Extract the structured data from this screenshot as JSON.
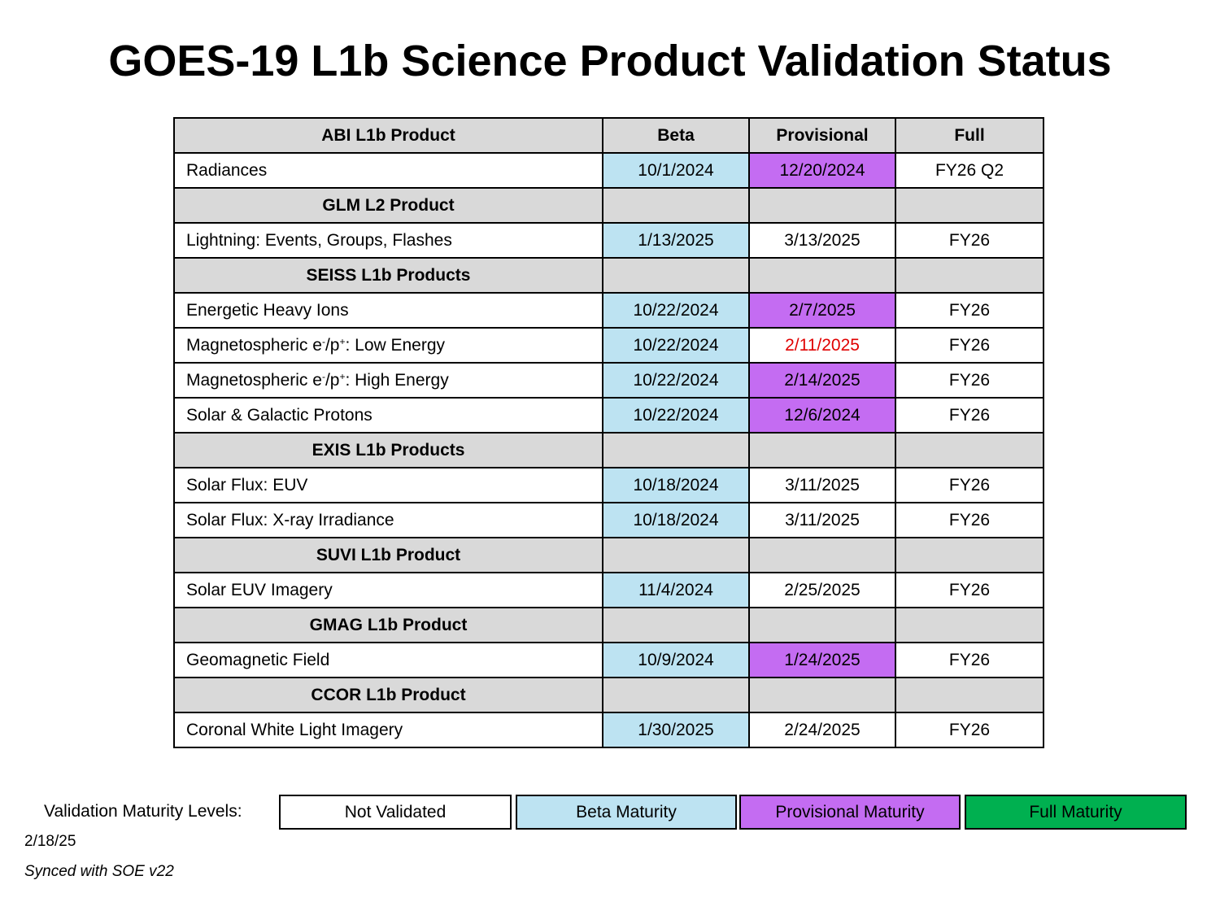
{
  "title": "GOES-19 L1b Science Product Validation Status",
  "colors": {
    "header_gray": "#d9d9d9",
    "beta": "#bde3f2",
    "provisional": "#c46cf2",
    "full": "#00b050",
    "not_validated": "#ffffff",
    "alert_text": "#e00000"
  },
  "table": {
    "header": {
      "product": "ABI L1b Product",
      "beta": "Beta",
      "provisional": "Provisional",
      "full": "Full"
    },
    "rows": [
      {
        "type": "item",
        "name": "Radiances",
        "beta": "10/1/2024",
        "provisional": "12/20/2024",
        "full": "FY26 Q2",
        "beta_status": "beta",
        "provisional_status": "provisional"
      },
      {
        "type": "section",
        "name": "GLM L2 Product"
      },
      {
        "type": "item",
        "name": "Lightning: Events, Groups, Flashes",
        "beta": "1/13/2025",
        "provisional": "3/13/2025",
        "full": "FY26",
        "beta_status": "beta"
      },
      {
        "type": "section",
        "name": "SEISS L1b Products"
      },
      {
        "type": "item",
        "name": "Energetic Heavy Ions",
        "beta": "10/22/2024",
        "provisional": "2/7/2025",
        "full": "FY26",
        "beta_status": "beta",
        "provisional_status": "provisional"
      },
      {
        "type": "item",
        "name_pre": "Magnetospheric e",
        "name_sup1": "-",
        "name_mid": "/p",
        "name_sup2": "+",
        "name_post": ": Low Energy",
        "beta": "10/22/2024",
        "provisional": "2/11/2025",
        "full": "FY26",
        "beta_status": "beta",
        "provisional_text": "red"
      },
      {
        "type": "item",
        "name_pre": "Magnetospheric e",
        "name_sup1": "-",
        "name_mid": "/p",
        "name_sup2": "+",
        "name_post": ": High Energy",
        "beta": "10/22/2024",
        "provisional": "2/14/2025",
        "full": "FY26",
        "beta_status": "beta",
        "provisional_status": "provisional"
      },
      {
        "type": "item",
        "name": "Solar & Galactic Protons",
        "beta": "10/22/2024",
        "provisional": "12/6/2024",
        "full": "FY26",
        "beta_status": "beta",
        "provisional_status": "provisional"
      },
      {
        "type": "section",
        "name": "EXIS L1b Products"
      },
      {
        "type": "item",
        "name": "Solar Flux: EUV",
        "beta": "10/18/2024",
        "provisional": "3/11/2025",
        "full": "FY26",
        "beta_status": "beta"
      },
      {
        "type": "item",
        "name": "Solar Flux: X-ray Irradiance",
        "beta": "10/18/2024",
        "provisional": "3/11/2025",
        "full": "FY26",
        "beta_status": "beta"
      },
      {
        "type": "section",
        "name": "SUVI L1b Product"
      },
      {
        "type": "item",
        "name": "Solar EUV Imagery",
        "beta": "11/4/2024",
        "provisional": "2/25/2025",
        "full": "FY26",
        "beta_status": "beta"
      },
      {
        "type": "section",
        "name": "GMAG L1b Product"
      },
      {
        "type": "item",
        "name": "Geomagnetic Field",
        "beta": "10/9/2024",
        "provisional": "1/24/2025",
        "full": "FY26",
        "beta_status": "beta",
        "provisional_status": "provisional"
      },
      {
        "type": "section",
        "name": "CCOR L1b Product"
      },
      {
        "type": "item",
        "name": "Coronal White Light Imagery",
        "beta": "1/30/2025",
        "provisional": "2/24/2025",
        "full": "FY26",
        "beta_status": "beta"
      }
    ]
  },
  "legend": {
    "label": "Validation Maturity Levels:",
    "not_validated": "Not Validated",
    "beta": "Beta Maturity",
    "provisional": "Provisional Maturity",
    "full": "Full Maturity"
  },
  "footer": {
    "date": "2/18/25",
    "sync_note": "Synced with SOE v22"
  }
}
